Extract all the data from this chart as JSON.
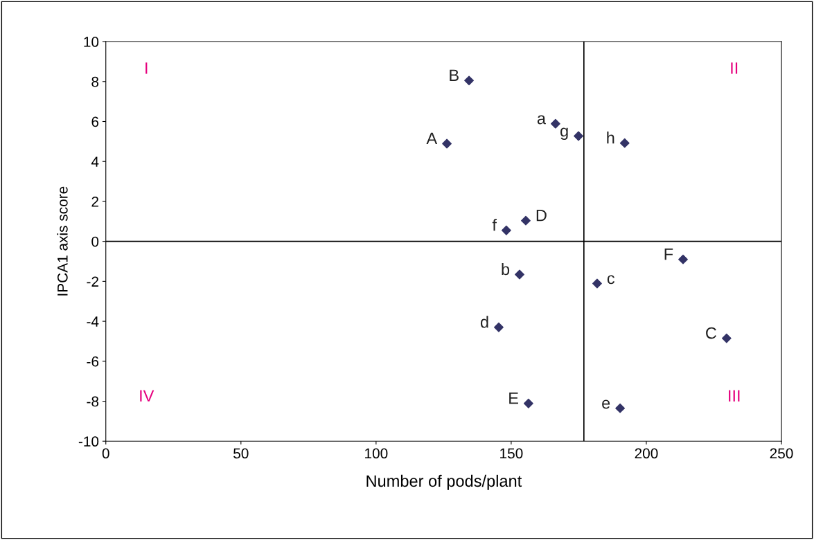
{
  "chart_data": {
    "type": "scatter",
    "xlabel": "Number of pods/plant",
    "ylabel": "IPCA1 axis score",
    "x": [
      126.2,
      134.4,
      166.4,
      174.9,
      192.0,
      148.2,
      155.4,
      153.1,
      145.4,
      156.4,
      181.8,
      213.6,
      229.7,
      190.3
    ],
    "series": [
      {
        "color": "#333366",
        "values": [
          4.89,
          8.05,
          5.89,
          5.27,
          4.92,
          0.55,
          1.04,
          -1.66,
          -4.3,
          -8.11,
          -2.11,
          -0.9,
          -4.85,
          -8.35
        ]
      }
    ],
    "marker": "diamond",
    "grid": false,
    "legend": false,
    "xlim": [
      0,
      250
    ],
    "xticks": [
      0,
      50,
      100,
      150,
      200,
      250
    ],
    "ylim": [
      -10,
      10
    ],
    "yticks": [
      -10,
      -8,
      -6,
      -4,
      -2,
      0,
      2,
      4,
      6,
      8,
      10
    ],
    "ref_lines": [
      {
        "axis": "x",
        "value": 176.9,
        "color": "#000000"
      },
      {
        "axis": "y",
        "value": 0,
        "color": "#000000"
      }
    ],
    "annotations": [
      {
        "text": "A",
        "x": 126.2,
        "y": 4.89
      },
      {
        "text": "B",
        "x": 134.4,
        "y": 8.05
      },
      {
        "text": "a",
        "x": 166.4,
        "y": 5.89
      },
      {
        "text": "g",
        "x": 174.9,
        "y": 5.27
      },
      {
        "text": "h",
        "x": 192.0,
        "y": 4.92
      },
      {
        "text": "f",
        "x": 148.2,
        "y": 0.55
      },
      {
        "text": "D",
        "x": 155.4,
        "y": 1.04
      },
      {
        "text": "b",
        "x": 153.1,
        "y": -1.66
      },
      {
        "text": "d",
        "x": 145.4,
        "y": -4.3
      },
      {
        "text": "E",
        "x": 156.4,
        "y": -8.11
      },
      {
        "text": "c",
        "x": 181.8,
        "y": -2.11
      },
      {
        "text": "F",
        "x": 213.6,
        "y": -0.9
      },
      {
        "text": "C",
        "x": 229.7,
        "y": -4.85
      },
      {
        "text": "e",
        "x": 190.3,
        "y": -8.35
      },
      "I",
      "II",
      "III",
      "IV"
    ]
  }
}
